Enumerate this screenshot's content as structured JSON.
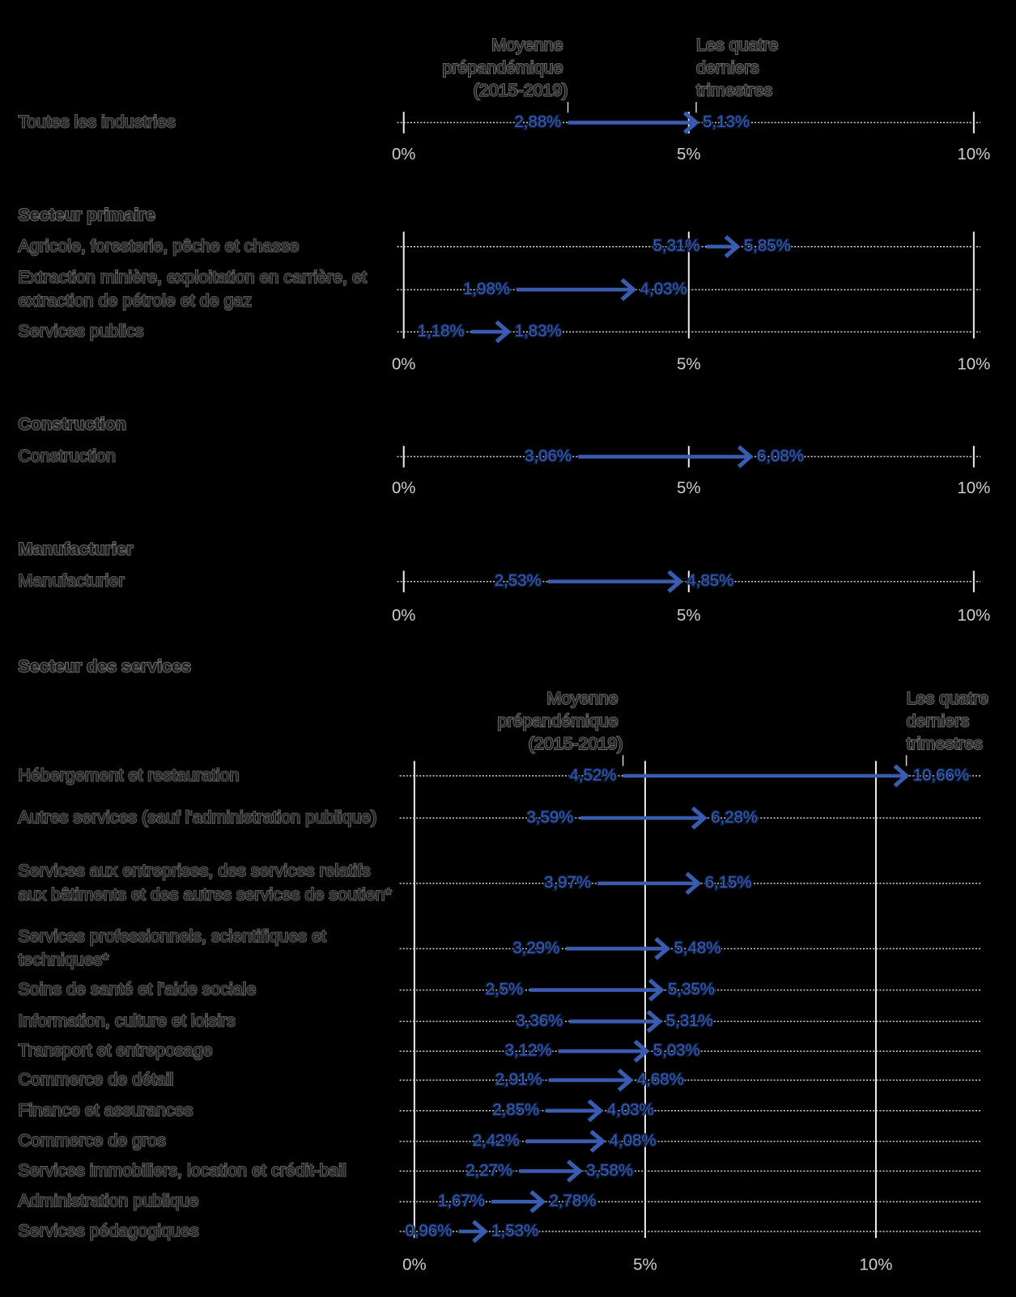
{
  "chart_data": [
    {
      "type": "arrow",
      "categories": [
        "Toutes les industries"
      ],
      "series": [
        {
          "name": "Moyenne prépandémique (2015-2019)",
          "color": "#3a5cb0",
          "values": [
            2.88
          ],
          "value_labels": [
            "2,88%"
          ]
        },
        {
          "name": "Les quatre derniers trimestres",
          "color": "#3a5cb0",
          "values": [
            5.13
          ],
          "value_labels": [
            "5,13%"
          ]
        }
      ],
      "xlim": [
        0,
        10
      ],
      "xticks": [
        {
          "value": 0,
          "label": "0%"
        },
        {
          "value": 5,
          "label": "5%"
        },
        {
          "value": 10,
          "label": "10%"
        }
      ],
      "grid": false
    },
    {
      "type": "arrow",
      "title": "Secteur primaire",
      "categories": [
        "Agricole, foresterie, pêche et chasse",
        "Extraction minière, exploitation en carrière, et extraction de pétrole et de gaz",
        "Services publics"
      ],
      "series": [
        {
          "color": "#3a5cb0",
          "values": [
            5.31,
            1.98,
            1.18
          ],
          "value_labels": [
            "5,31%",
            "1,98%",
            "1,18%"
          ]
        },
        {
          "color": "#3a5cb0",
          "values": [
            5.85,
            4.03,
            1.83
          ],
          "value_labels": [
            "5,85%",
            "4,03%",
            "1,83%"
          ]
        }
      ],
      "xlim": [
        0,
        10
      ],
      "xticks": [
        {
          "value": 0,
          "label": "0%"
        },
        {
          "value": 5,
          "label": "5%"
        },
        {
          "value": 10,
          "label": "10%"
        }
      ],
      "grid": true
    },
    {
      "type": "arrow",
      "title": "Construction",
      "categories": [
        "Construction"
      ],
      "series": [
        {
          "color": "#3a5cb0",
          "values": [
            3.06
          ],
          "value_labels": [
            "3,06%"
          ]
        },
        {
          "color": "#3a5cb0",
          "values": [
            6.08
          ],
          "value_labels": [
            "6,08%"
          ]
        }
      ],
      "xlim": [
        0,
        10
      ],
      "xticks": [
        {
          "value": 0,
          "label": "0%"
        },
        {
          "value": 5,
          "label": "5%"
        },
        {
          "value": 10,
          "label": "10%"
        }
      ],
      "grid": false
    },
    {
      "type": "arrow",
      "title": "Manufacturier",
      "categories": [
        "Manufacturier"
      ],
      "series": [
        {
          "color": "#3a5cb0",
          "values": [
            2.53
          ],
          "value_labels": [
            "2,53%"
          ]
        },
        {
          "color": "#3a5cb0",
          "values": [
            4.85
          ],
          "value_labels": [
            "4,85%"
          ]
        }
      ],
      "xlim": [
        0,
        10
      ],
      "xticks": [
        {
          "value": 0,
          "label": "0%"
        },
        {
          "value": 5,
          "label": "5%"
        },
        {
          "value": 10,
          "label": "10%"
        }
      ],
      "grid": false
    },
    {
      "type": "arrow",
      "title": "Secteur des services",
      "categories": [
        "Hébergement et restauration",
        "Autres services (sauf l'administration publique)",
        "Services aux entreprises, des services relatifs aux bâtiments et des autres services de soutien*",
        "Services professionnels, scientifiques et techniques*",
        "Soins de santé et l'aide sociale",
        "Information, culture et loisirs",
        "Transport et entreposage",
        "Commerce de détail",
        "Finance et assurances",
        "Commerce de gros",
        "Services immobiliers, location et crédit-bail",
        "Administration publique",
        "Services pédagogiques"
      ],
      "series": [
        {
          "name": "Moyenne prépandémique (2015-2019)",
          "color": "#3a5cb0",
          "values": [
            4.52,
            3.59,
            3.97,
            3.29,
            2.5,
            3.36,
            3.12,
            2.91,
            2.85,
            2.42,
            2.27,
            1.67,
            0.96
          ],
          "value_labels": [
            "4,52%",
            "3,59%",
            "3,97%",
            "3,29%",
            "2,5%",
            "3,36%",
            "3,12%",
            "2,91%",
            "2,85%",
            "2,42%",
            "2,27%",
            "1,67%",
            "0,96%"
          ]
        },
        {
          "name": "Les quatre derniers trimestres",
          "color": "#3a5cb0",
          "values": [
            10.66,
            6.28,
            6.15,
            5.48,
            5.35,
            5.31,
            5.03,
            4.68,
            4.03,
            4.08,
            3.58,
            2.78,
            1.53
          ],
          "value_labels": [
            "10,66%",
            "6,28%",
            "6,15%",
            "5,48%",
            "5,35%",
            "5,31%",
            "5,03%",
            "4,68%",
            "4,03%",
            "4,08%",
            "3,58%",
            "2,78%",
            "1,53%"
          ]
        }
      ],
      "xlim": [
        -0.32,
        12.3
      ],
      "xticks": [
        {
          "value": 0,
          "label": "0%"
        },
        {
          "value": 5,
          "label": "5%"
        },
        {
          "value": 10,
          "label": "10%"
        }
      ],
      "grid": true
    }
  ]
}
